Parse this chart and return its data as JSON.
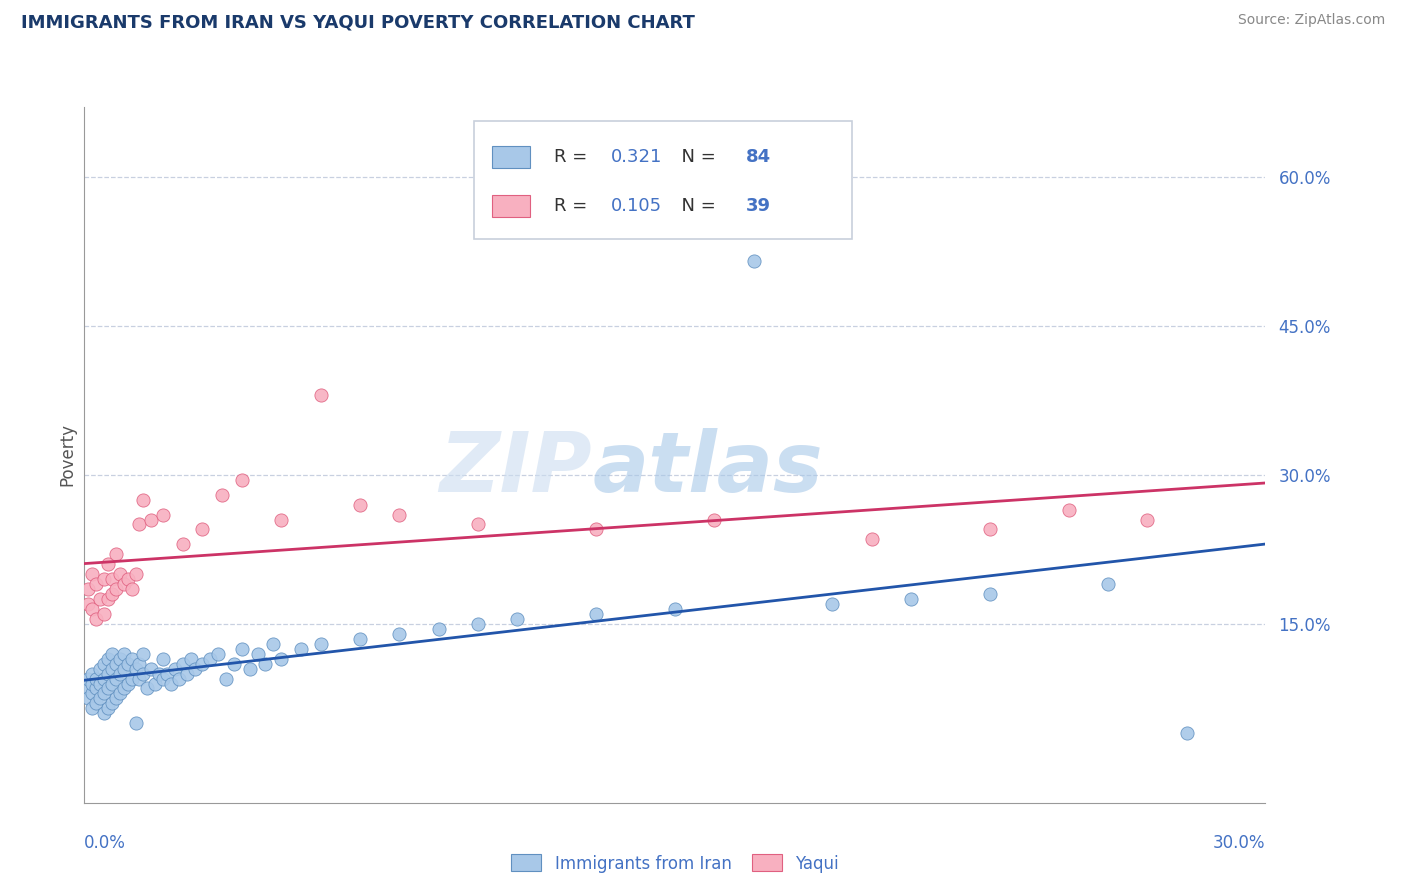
{
  "title": "IMMIGRANTS FROM IRAN VS YAQUI POVERTY CORRELATION CHART",
  "source": "Source: ZipAtlas.com",
  "ylabel": "Poverty",
  "xmin": 0.0,
  "xmax": 0.3,
  "ymin": -0.03,
  "ymax": 0.67,
  "blue_R": 0.321,
  "blue_N": 84,
  "pink_R": 0.105,
  "pink_N": 39,
  "blue_color": "#a8c8e8",
  "pink_color": "#f8b0c0",
  "blue_edge_color": "#6090c0",
  "pink_edge_color": "#e06080",
  "blue_line_color": "#2255aa",
  "pink_line_color": "#cc3366",
  "title_color": "#1a3a6b",
  "axis_color": "#4472c4",
  "legend_text_color": "#333333",
  "background_color": "#ffffff",
  "gridline_color": "#c8d0e0",
  "ytick_vals": [
    0.15,
    0.3,
    0.45,
    0.6
  ],
  "blue_scatter_x": [
    0.001,
    0.001,
    0.001,
    0.002,
    0.002,
    0.002,
    0.002,
    0.003,
    0.003,
    0.003,
    0.004,
    0.004,
    0.004,
    0.005,
    0.005,
    0.005,
    0.005,
    0.006,
    0.006,
    0.006,
    0.006,
    0.007,
    0.007,
    0.007,
    0.007,
    0.008,
    0.008,
    0.008,
    0.009,
    0.009,
    0.009,
    0.01,
    0.01,
    0.01,
    0.011,
    0.011,
    0.012,
    0.012,
    0.013,
    0.013,
    0.014,
    0.014,
    0.015,
    0.015,
    0.016,
    0.017,
    0.018,
    0.019,
    0.02,
    0.02,
    0.021,
    0.022,
    0.023,
    0.024,
    0.025,
    0.026,
    0.027,
    0.028,
    0.03,
    0.032,
    0.034,
    0.036,
    0.038,
    0.04,
    0.042,
    0.044,
    0.046,
    0.048,
    0.05,
    0.055,
    0.06,
    0.07,
    0.08,
    0.09,
    0.1,
    0.11,
    0.13,
    0.15,
    0.17,
    0.19,
    0.21,
    0.23,
    0.26,
    0.28
  ],
  "blue_scatter_y": [
    0.085,
    0.075,
    0.095,
    0.065,
    0.08,
    0.09,
    0.1,
    0.07,
    0.085,
    0.095,
    0.075,
    0.09,
    0.105,
    0.06,
    0.08,
    0.095,
    0.11,
    0.065,
    0.085,
    0.1,
    0.115,
    0.07,
    0.09,
    0.105,
    0.12,
    0.075,
    0.095,
    0.11,
    0.08,
    0.1,
    0.115,
    0.085,
    0.105,
    0.12,
    0.09,
    0.11,
    0.095,
    0.115,
    0.05,
    0.105,
    0.095,
    0.11,
    0.1,
    0.12,
    0.085,
    0.105,
    0.09,
    0.1,
    0.095,
    0.115,
    0.1,
    0.09,
    0.105,
    0.095,
    0.11,
    0.1,
    0.115,
    0.105,
    0.11,
    0.115,
    0.12,
    0.095,
    0.11,
    0.125,
    0.105,
    0.12,
    0.11,
    0.13,
    0.115,
    0.125,
    0.13,
    0.135,
    0.14,
    0.145,
    0.15,
    0.155,
    0.16,
    0.165,
    0.515,
    0.17,
    0.175,
    0.18,
    0.19,
    0.04
  ],
  "pink_scatter_x": [
    0.001,
    0.001,
    0.002,
    0.002,
    0.003,
    0.003,
    0.004,
    0.005,
    0.005,
    0.006,
    0.006,
    0.007,
    0.007,
    0.008,
    0.008,
    0.009,
    0.01,
    0.011,
    0.012,
    0.013,
    0.014,
    0.015,
    0.017,
    0.02,
    0.025,
    0.03,
    0.035,
    0.04,
    0.05,
    0.06,
    0.07,
    0.08,
    0.1,
    0.13,
    0.16,
    0.2,
    0.23,
    0.25,
    0.27
  ],
  "pink_scatter_y": [
    0.17,
    0.185,
    0.165,
    0.2,
    0.155,
    0.19,
    0.175,
    0.16,
    0.195,
    0.175,
    0.21,
    0.18,
    0.195,
    0.185,
    0.22,
    0.2,
    0.19,
    0.195,
    0.185,
    0.2,
    0.25,
    0.275,
    0.255,
    0.26,
    0.23,
    0.245,
    0.28,
    0.295,
    0.255,
    0.38,
    0.27,
    0.26,
    0.25,
    0.245,
    0.255,
    0.235,
    0.245,
    0.265,
    0.255
  ]
}
